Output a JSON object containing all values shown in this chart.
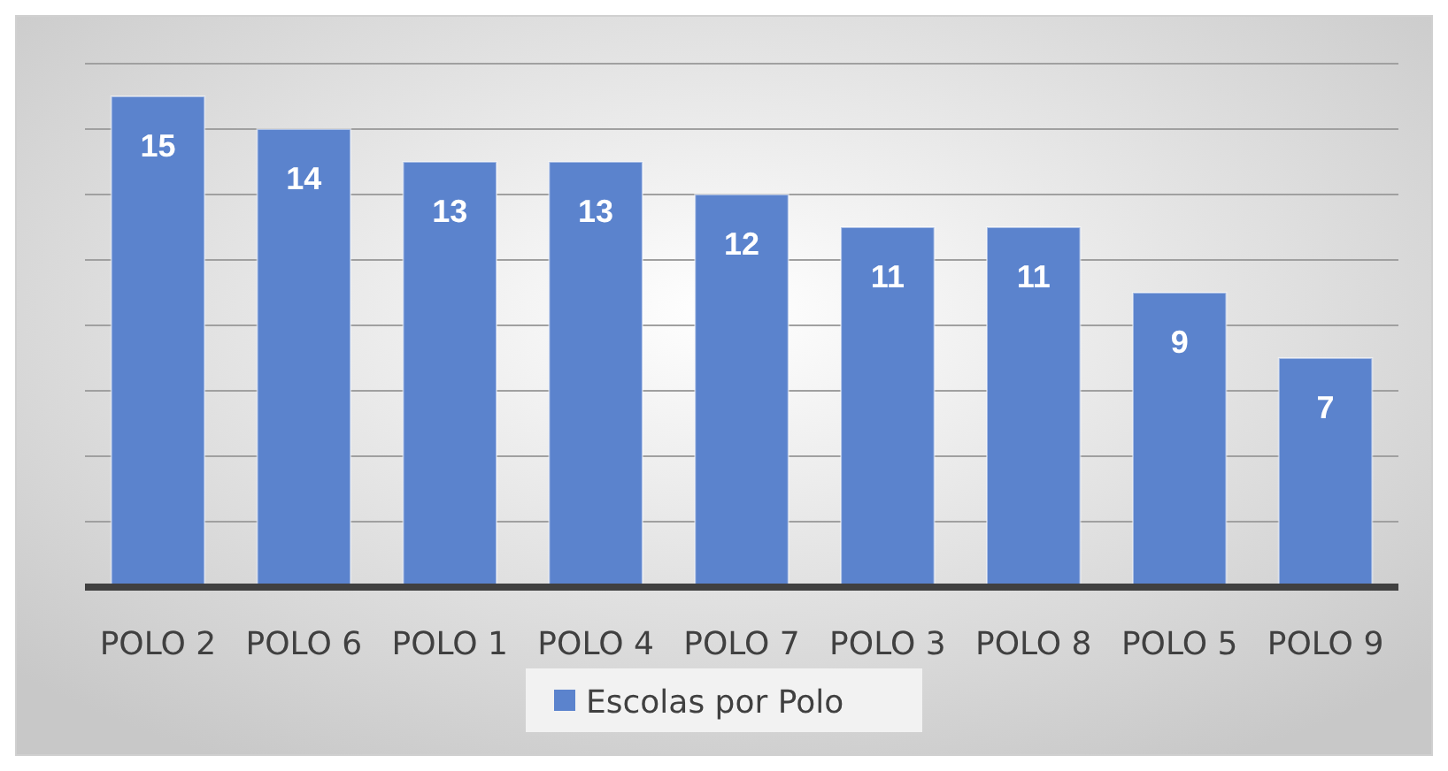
{
  "chart_data": {
    "type": "bar",
    "categories": [
      "POLO 2",
      "POLO 6",
      "POLO 1",
      "POLO 4",
      "POLO 7",
      "POLO 3",
      "POLO 8",
      "POLO 5",
      "POLO 9"
    ],
    "series": [
      {
        "name": "Escolas por Polo",
        "color": "#5b83cd",
        "values": [
          15,
          14,
          13,
          13,
          12,
          11,
          11,
          9,
          7
        ]
      }
    ],
    "ylim": [
      0,
      16
    ],
    "yticks": [
      {
        "value": 0,
        "label": null
      },
      {
        "value": 2,
        "label": null
      },
      {
        "value": 4,
        "label": null
      },
      {
        "value": 6,
        "label": null
      },
      {
        "value": 8,
        "label": null
      },
      {
        "value": 10,
        "label": null
      },
      {
        "value": 12,
        "label": null
      },
      {
        "value": 14,
        "label": null
      },
      {
        "value": 16,
        "label": null
      }
    ],
    "grid": "y",
    "data_labels": true,
    "legend": "bottom",
    "tick_labels": "x"
  }
}
